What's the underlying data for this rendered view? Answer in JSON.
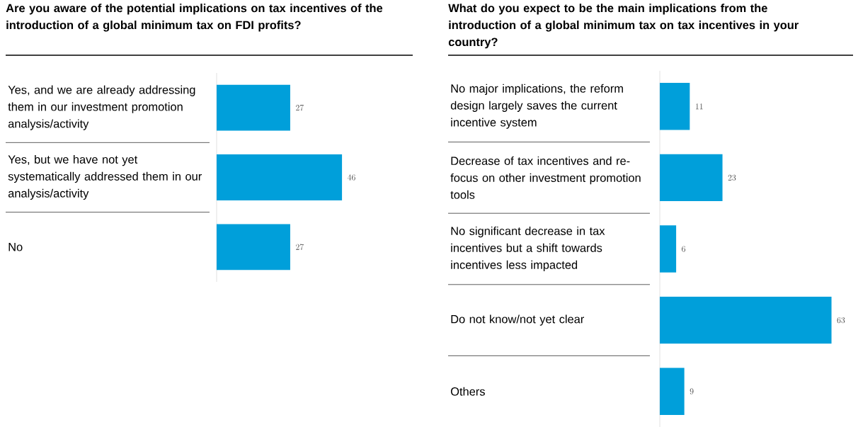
{
  "chart_data": [
    {
      "type": "bar",
      "orientation": "horizontal",
      "title": "Are you aware of the potential implications on tax incentives of the introduction of a global minimum tax on FDI profits?",
      "categories": [
        "Yes, and we are already addressing them in our investment promotion analysis/activity",
        "Yes, but we have not yet systematically addressed them in our analysis/activity",
        "No"
      ],
      "values": [
        27,
        46,
        27
      ],
      "color": "#009fda",
      "data_labels": true
    },
    {
      "type": "bar",
      "orientation": "horizontal",
      "title": "What do you expect to be the main implications from the introduction of a global minimum tax on tax incentives in your country?",
      "categories": [
        "No major implications, the reform design largely saves the current incentive system",
        "Decrease of tax incentives and re-focus on other investment promotion tools",
        "No significant decrease in tax incentives but a shift towards incentives less impacted",
        "Do not know/not yet clear",
        "Others"
      ],
      "values": [
        11,
        23,
        6,
        63,
        9
      ],
      "color": "#009fda",
      "data_labels": true
    }
  ]
}
